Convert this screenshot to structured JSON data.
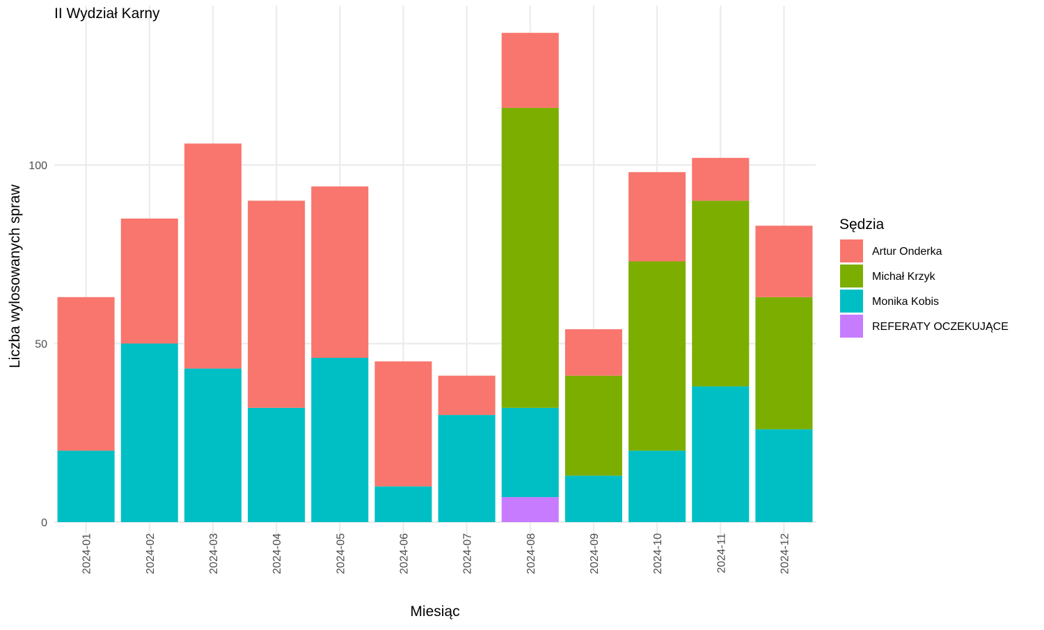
{
  "chart_data": {
    "type": "bar",
    "stacked": true,
    "title": "II Wydział Karny",
    "xlabel": "Miesiąc",
    "ylabel": "Liczba wylosowanych spraw",
    "ylim": [
      0,
      142
    ],
    "yticks": [
      0,
      50,
      100
    ],
    "grid": true,
    "legend_position": "right",
    "legend_title": "Sędzia",
    "categories": [
      "2024-01",
      "2024-02",
      "2024-03",
      "2024-04",
      "2024-05",
      "2024-06",
      "2024-07",
      "2024-08",
      "2024-09",
      "2024-10",
      "2024-11",
      "2024-12"
    ],
    "series": [
      {
        "name": "REFERATY OCZEKUJĄCE",
        "color": "#C77CFF",
        "values": [
          0,
          0,
          0,
          0,
          0,
          0,
          0,
          7,
          0,
          0,
          0,
          0
        ]
      },
      {
        "name": "Monika Kobis",
        "color": "#00BFC4",
        "values": [
          20,
          50,
          43,
          32,
          46,
          10,
          30,
          25,
          13,
          20,
          38,
          26
        ]
      },
      {
        "name": "Michał Krzyk",
        "color": "#7CAE00",
        "values": [
          0,
          0,
          0,
          0,
          0,
          0,
          0,
          84,
          28,
          53,
          52,
          37
        ]
      },
      {
        "name": "Artur Onderka",
        "color": "#F8766D",
        "values": [
          43,
          35,
          63,
          58,
          48,
          35,
          11,
          21,
          13,
          25,
          12,
          20
        ]
      }
    ],
    "legend_order": [
      "Artur Onderka",
      "Michał Krzyk",
      "Monika Kobis",
      "REFERATY OCZEKUJĄCE"
    ]
  }
}
